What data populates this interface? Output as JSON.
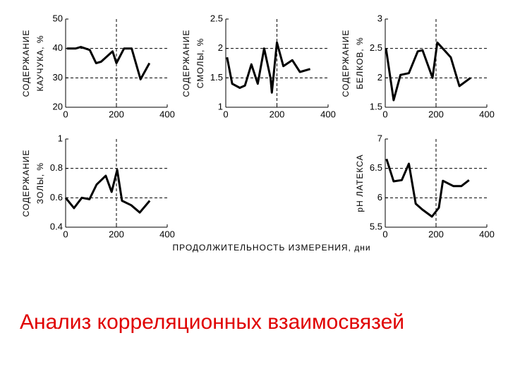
{
  "chart_data": [
    {
      "type": "line",
      "ylabel": [
        "СОДЕРЖАНИЕ",
        "КАУЧУКА, %"
      ],
      "x": [
        5,
        40,
        60,
        95,
        120,
        140,
        185,
        200,
        230,
        260,
        295,
        330
      ],
      "values": [
        40,
        40,
        40.5,
        39.5,
        35,
        35.5,
        39,
        35,
        40,
        40,
        29.5,
        35
      ],
      "color": "#000000",
      "xlim": [
        0,
        400
      ],
      "xticks": [
        0,
        200,
        400
      ],
      "ylim": [
        20,
        50
      ],
      "yticks": [
        20,
        30,
        40,
        50
      ],
      "grid": true
    },
    {
      "type": "line",
      "ylabel": [
        "СОДЕРЖАНИЕ",
        "СМОЛЫ, %"
      ],
      "x": [
        5,
        25,
        55,
        75,
        100,
        125,
        150,
        175,
        180,
        200,
        225,
        260,
        290,
        330
      ],
      "values": [
        1.85,
        1.4,
        1.33,
        1.37,
        1.73,
        1.4,
        2,
        1.5,
        1.25,
        2.1,
        1.7,
        1.8,
        1.6,
        1.65
      ],
      "color": "#000000",
      "xlim": [
        0,
        400
      ],
      "xticks": [
        0,
        200,
        400
      ],
      "ylim": [
        1,
        2.5
      ],
      "yticks": [
        1,
        1.5,
        2,
        2.5
      ],
      "grid": true
    },
    {
      "type": "line",
      "ylabel": [
        "СОДЕРЖАНИЕ",
        "БЕЛКОВ, %"
      ],
      "x": [
        3,
        33,
        60,
        93,
        128,
        147,
        186,
        205,
        258,
        292,
        336
      ],
      "values": [
        2.5,
        1.62,
        2.05,
        2.08,
        2.45,
        2.47,
        2.0,
        2.6,
        2.35,
        1.86,
        2.0
      ],
      "color": "#000000",
      "xlim": [
        0,
        400
      ],
      "xticks": [
        0,
        200,
        400
      ],
      "ylim": [
        1.5,
        3
      ],
      "yticks": [
        1.5,
        2,
        2.5,
        3
      ],
      "grid": true
    },
    {
      "type": "line",
      "ylabel": [
        "СОДЕРЖАНИЕ",
        "ЗОЛЫ, %"
      ],
      "x": [
        0,
        33,
        64,
        94,
        122,
        158,
        181,
        203,
        222,
        258,
        292,
        331
      ],
      "values": [
        0.6,
        0.53,
        0.6,
        0.59,
        0.69,
        0.75,
        0.64,
        0.79,
        0.58,
        0.55,
        0.5,
        0.58
      ],
      "color": "#000000",
      "xlim": [
        0,
        400
      ],
      "xticks": [
        0,
        200,
        400
      ],
      "ylim": [
        0.4,
        1
      ],
      "yticks": [
        0.4,
        0.6,
        0.8,
        1
      ],
      "grid": true
    },
    {
      "type": "line",
      "ylabel": [
        "pH ЛАТЕКСА"
      ],
      "x": [
        5,
        33,
        65,
        93,
        120,
        146,
        184,
        211,
        227,
        268,
        300,
        330
      ],
      "values": [
        6.66,
        6.28,
        6.3,
        6.58,
        5.9,
        5.8,
        5.68,
        5.83,
        6.29,
        6.2,
        6.2,
        6.3
      ],
      "color": "#000000",
      "xlim": [
        0,
        400
      ],
      "xticks": [
        0,
        200,
        400
      ],
      "ylim": [
        5.5,
        7
      ],
      "yticks": [
        5.5,
        6,
        6.5,
        7
      ],
      "grid": true
    }
  ],
  "x_label": "ПРОДОЛЖИТЕЛЬНОСТЬ ИЗМЕРЕНИЯ, дни",
  "caption": "Анализ корреляционных взаимосвязей"
}
